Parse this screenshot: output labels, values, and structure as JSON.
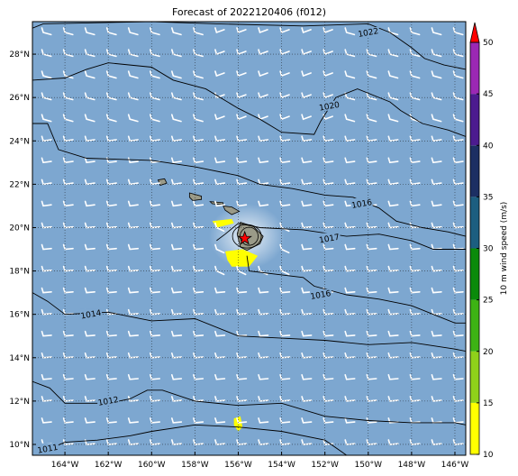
{
  "title": "Forecast of 2022120406 (f012)",
  "map": {
    "lon_range": [
      -165.5,
      -145.5
    ],
    "lat_range": [
      9.5,
      29.5
    ],
    "lon_ticks": [
      {
        "value": -164,
        "label": "164°W"
      },
      {
        "value": -162,
        "label": "162°W"
      },
      {
        "value": -160,
        "label": "160°W"
      },
      {
        "value": -158,
        "label": "158°W"
      },
      {
        "value": -156,
        "label": "156°W"
      },
      {
        "value": -154,
        "label": "154°W"
      },
      {
        "value": -152,
        "label": "152°W"
      },
      {
        "value": -150,
        "label": "150°W"
      },
      {
        "value": -148,
        "label": "148°W"
      },
      {
        "value": -146,
        "label": "146°W"
      }
    ],
    "lat_ticks": [
      {
        "value": 10,
        "label": "10°N"
      },
      {
        "value": 12,
        "label": "12°N"
      },
      {
        "value": 14,
        "label": "14°N"
      },
      {
        "value": 16,
        "label": "16°N"
      },
      {
        "value": 18,
        "label": "18°N"
      },
      {
        "value": 20,
        "label": "20°N"
      },
      {
        "value": 22,
        "label": "22°N"
      },
      {
        "value": 24,
        "label": "24°N"
      },
      {
        "value": 26,
        "label": "26°N"
      },
      {
        "value": 28,
        "label": "28°N"
      }
    ],
    "background_color": "#7da7d0",
    "gridlines": "dotted",
    "wind_barbs": "white",
    "marker": {
      "lon": -155.7,
      "lat": 19.5,
      "symbol": "red star"
    }
  },
  "isobars": [
    {
      "label": "1022",
      "points": [
        [
          -165.5,
          29.2
        ],
        [
          -165,
          29.4
        ],
        [
          -160,
          29.5
        ],
        [
          -157,
          29.4
        ],
        [
          -153,
          29.3
        ],
        [
          -150,
          29.4
        ],
        [
          -149,
          29.0
        ],
        [
          -148,
          28.3
        ],
        [
          -147.4,
          27.8
        ],
        [
          -146.5,
          27.5
        ],
        [
          -145.5,
          27.3
        ]
      ],
      "label_at": [
        -150,
        29.0
      ]
    },
    {
      "label": "1020",
      "points": [
        [
          -165.5,
          26.8
        ],
        [
          -164,
          26.9
        ],
        [
          -163,
          27.3
        ],
        [
          -162,
          27.6
        ],
        [
          -160,
          27.4
        ],
        [
          -159,
          26.8
        ],
        [
          -157.5,
          26.4
        ],
        [
          -156,
          25.5
        ],
        [
          -155,
          25.0
        ],
        [
          -154,
          24.4
        ],
        [
          -152.5,
          24.3
        ],
        [
          -152.2,
          24.9
        ],
        [
          -151.5,
          26.0
        ],
        [
          -150.5,
          26.4
        ],
        [
          -149,
          25.8
        ],
        [
          -148.5,
          25.4
        ],
        [
          -147.5,
          24.8
        ],
        [
          -146.3,
          24.5
        ],
        [
          -145.5,
          24.2
        ]
      ],
      "label_at": [
        -151.8,
        25.6
      ]
    },
    {
      "label": "1016",
      "points": [
        [
          -165.5,
          24.8
        ],
        [
          -164.8,
          24.8
        ],
        [
          -164.3,
          23.6
        ],
        [
          -163,
          23.2
        ],
        [
          -160,
          23.1
        ],
        [
          -158,
          22.8
        ],
        [
          -156,
          22.4
        ],
        [
          -155,
          22.0
        ],
        [
          -153.5,
          21.8
        ],
        [
          -152,
          21.5
        ],
        [
          -150.7,
          21.4
        ],
        [
          -149.5,
          20.9
        ],
        [
          -148.7,
          20.3
        ],
        [
          -147.5,
          20.0
        ],
        [
          -146.3,
          19.8
        ],
        [
          -145.5,
          19.6
        ]
      ],
      "label_at": [
        -150.3,
        21.1
      ]
    },
    {
      "label": "1017",
      "points": [
        [
          -157,
          19.4
        ],
        [
          -156.6,
          19.7
        ],
        [
          -156,
          20.2
        ],
        [
          -155.5,
          20.1
        ],
        [
          -155,
          20.0
        ],
        [
          -153,
          19.9
        ],
        [
          -151,
          19.6
        ],
        [
          -149.5,
          19.7
        ],
        [
          -148,
          19.4
        ],
        [
          -147,
          19.0
        ],
        [
          -145.5,
          19.0
        ]
      ],
      "label_at": [
        -151.8,
        19.5
      ]
    },
    {
      "label": "1016",
      "points": [
        [
          -155.6,
          18.7
        ],
        [
          -155.5,
          18.0
        ],
        [
          -153,
          17.7
        ],
        [
          -152.5,
          17.3
        ],
        [
          -151,
          16.9
        ],
        [
          -149.5,
          16.7
        ],
        [
          -148,
          16.4
        ],
        [
          -147,
          16.0
        ],
        [
          -146,
          15.6
        ],
        [
          -145.5,
          15.6
        ]
      ],
      "label_at": [
        -152.2,
        16.9
      ]
    },
    {
      "label": "1014",
      "points": [
        [
          -165.5,
          17.0
        ],
        [
          -164.8,
          16.6
        ],
        [
          -164,
          16.0
        ],
        [
          -162,
          16.1
        ],
        [
          -160,
          15.7
        ],
        [
          -158,
          15.8
        ],
        [
          -156,
          15.0
        ],
        [
          -154,
          14.9
        ],
        [
          -152,
          14.8
        ],
        [
          -150,
          14.6
        ],
        [
          -148,
          14.7
        ],
        [
          -146,
          14.4
        ],
        [
          -145.5,
          14.3
        ]
      ],
      "label_at": [
        -162.8,
        16.0
      ]
    },
    {
      "label": "1012",
      "points": [
        [
          -165.5,
          12.9
        ],
        [
          -164.7,
          12.6
        ],
        [
          -164,
          11.9
        ],
        [
          -162,
          11.9
        ],
        [
          -161,
          12.1
        ],
        [
          -160.2,
          12.5
        ],
        [
          -159.5,
          12.5
        ],
        [
          -158,
          12.0
        ],
        [
          -156,
          11.8
        ],
        [
          -154,
          11.9
        ],
        [
          -152,
          11.3
        ],
        [
          -150,
          11.1
        ],
        [
          -148,
          11.0
        ],
        [
          -146,
          11.0
        ],
        [
          -145.5,
          10.9
        ]
      ],
      "label_at": [
        -162,
        12.0
      ]
    },
    {
      "label": "1011",
      "points": [
        [
          -165.2,
          9.6
        ],
        [
          -164,
          10.1
        ],
        [
          -162.5,
          10.2
        ],
        [
          -161,
          10.4
        ],
        [
          -160,
          10.6
        ],
        [
          -158,
          10.9
        ],
        [
          -156,
          10.8
        ],
        [
          -154,
          10.6
        ],
        [
          -152,
          10.2
        ],
        [
          -151,
          9.5
        ]
      ],
      "label_at": [
        -164.8,
        9.8
      ]
    }
  ],
  "colorbar": {
    "label": "10 m wind speed (m/s)",
    "ticks": [
      "10",
      "15",
      "20",
      "25",
      "30",
      "35",
      "40",
      "45",
      "50"
    ],
    "bins": [
      {
        "from": 10,
        "to": 15,
        "color": "#ffff00"
      },
      {
        "from": 15,
        "to": 20,
        "color": "#8fd11a"
      },
      {
        "from": 20,
        "to": 25,
        "color": "#3db314"
      },
      {
        "from": 25,
        "to": 30,
        "color": "#0a8a0a"
      },
      {
        "from": 30,
        "to": 35,
        "color": "#1c5e80"
      },
      {
        "from": 35,
        "to": 40,
        "color": "#1c2f63"
      },
      {
        "from": 40,
        "to": 45,
        "color": "#4c1b8f"
      },
      {
        "from": 45,
        "to": 50,
        "color": "#9b28b4"
      }
    ],
    "extend_color": "#ff0000"
  }
}
